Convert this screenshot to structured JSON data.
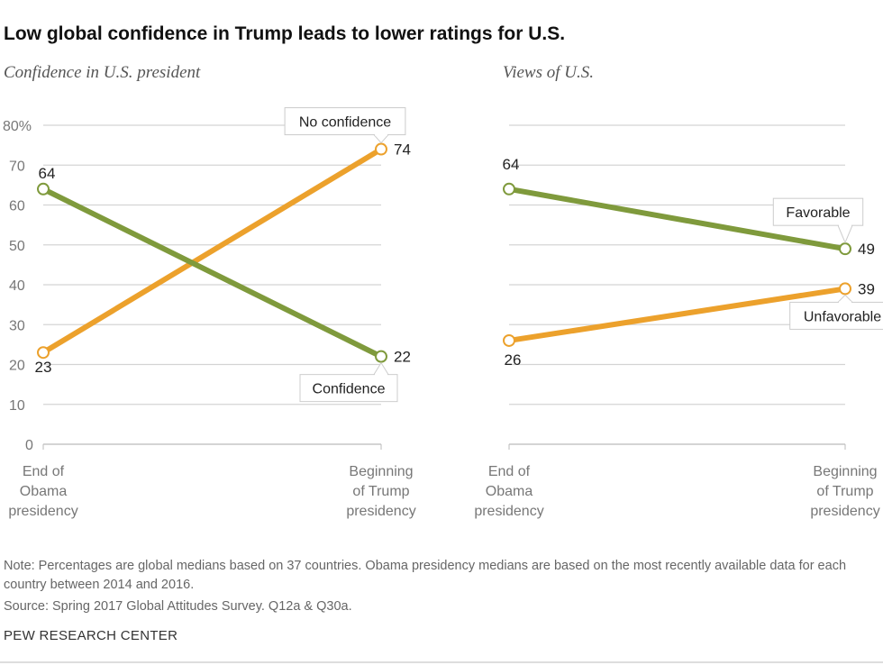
{
  "title": "Low global confidence in Trump leads to lower ratings for U.S.",
  "note": "Note: Percentages are global medians based on 37 countries. Obama presidency medians are based on the most recently available data for each country between 2014 and 2016.",
  "source": "Source: Spring 2017 Global Attitudes Survey. Q12a & Q30a.",
  "footer": "PEW RESEARCH CENTER",
  "chart_data": [
    {
      "type": "line",
      "title": "Confidence in U.S. president",
      "categories": [
        "End of Obama presidency",
        "Beginning of Trump presidency"
      ],
      "ylim": [
        0,
        80
      ],
      "yticks": [
        "0",
        "10",
        "20",
        "30",
        "40",
        "50",
        "60",
        "70",
        "80%"
      ],
      "grid": true,
      "series": [
        {
          "name": "No confidence",
          "values": [
            23,
            74
          ],
          "color": "#eca12c"
        },
        {
          "name": "Confidence",
          "values": [
            64,
            22
          ],
          "color": "#7f9a3c"
        }
      ]
    },
    {
      "type": "line",
      "title": "Views of U.S.",
      "categories": [
        "End of Obama presidency",
        "Beginning of Trump presidency"
      ],
      "ylim": [
        0,
        80
      ],
      "grid": true,
      "series": [
        {
          "name": "Favorable",
          "values": [
            64,
            49
          ],
          "color": "#7f9a3c"
        },
        {
          "name": "Unfavorable",
          "values": [
            26,
            39
          ],
          "color": "#eca12c"
        }
      ]
    }
  ]
}
